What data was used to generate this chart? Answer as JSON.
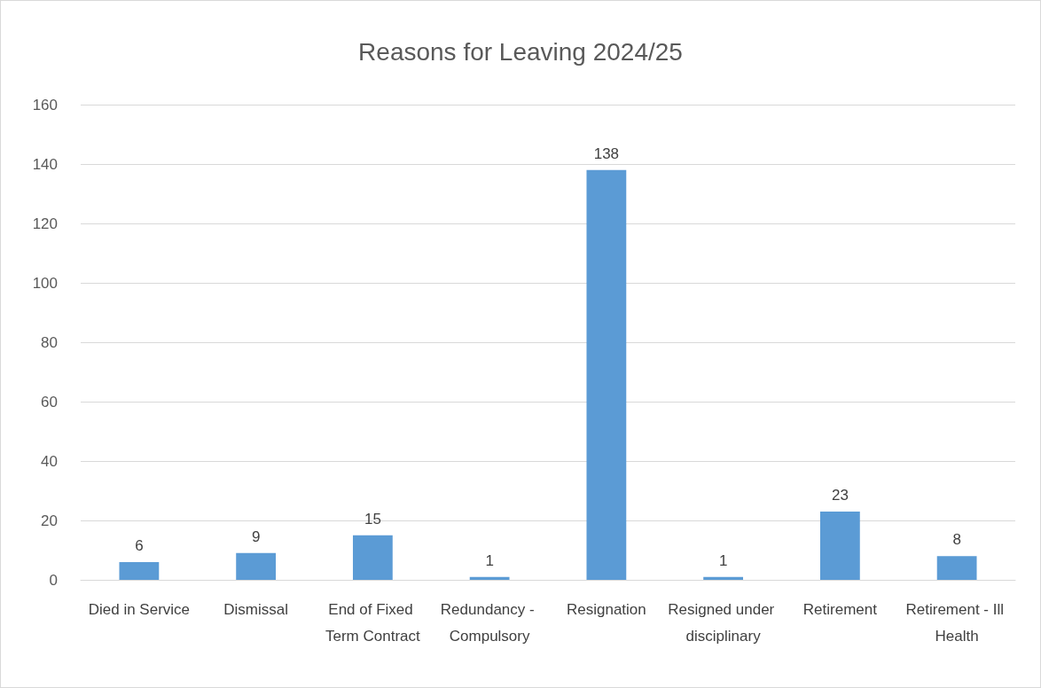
{
  "chart_data": {
    "type": "bar",
    "title": "Reasons for Leaving 2024/25",
    "categories": [
      "Died in Service",
      "Dismissal",
      "End of Fixed Term Contract",
      "Redundancy - Compulsory",
      "Resignation",
      "Resigned under disciplinary",
      "Retirement",
      "Retirement - Ill Health"
    ],
    "values": [
      6,
      9,
      15,
      1,
      138,
      1,
      23,
      8
    ],
    "color": "#5b9bd5",
    "ylim": [
      0,
      160
    ],
    "yticks": [
      0,
      20,
      40,
      60,
      80,
      100,
      120,
      140,
      160
    ],
    "grid": "y",
    "data_labels": true
  }
}
